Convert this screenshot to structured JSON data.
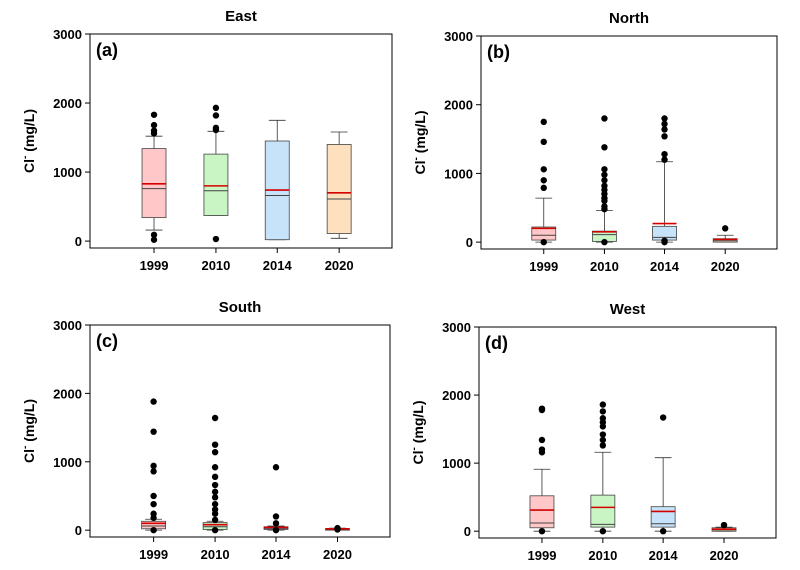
{
  "chart_data": [
    {
      "type": "box",
      "title": "East",
      "panel": "(a)",
      "ylabel": "Cl",
      "ylabel_sup": "-",
      "ylabel_unit": " (mg/L)",
      "ylim": [
        -100,
        3000
      ],
      "yticks": [
        0,
        1000,
        2000,
        3000
      ],
      "categories": [
        "1999",
        "2010",
        "2014",
        "2020"
      ],
      "colors": [
        "#ffc7c7",
        "#c9f5c4",
        "#c7e3fa",
        "#fde0bd"
      ],
      "boxes": [
        {
          "q1": 340,
          "median": 760,
          "mean": 830,
          "q3": 1340,
          "whisker_low": 160,
          "whisker_high": 1520,
          "outliers": [
            20,
            90,
            1560,
            1600,
            1680,
            1830
          ]
        },
        {
          "q1": 370,
          "median": 730,
          "mean": 800,
          "q3": 1260,
          "whisker_low": 370,
          "whisker_high": 1590,
          "outliers": [
            30,
            1610,
            1640,
            1820,
            1930
          ]
        },
        {
          "q1": 20,
          "median": 660,
          "mean": 740,
          "q3": 1450,
          "whisker_low": 20,
          "whisker_high": 1750,
          "outliers": []
        },
        {
          "q1": 110,
          "median": 610,
          "mean": 700,
          "q3": 1400,
          "whisker_low": 40,
          "whisker_high": 1580,
          "outliers": []
        }
      ]
    },
    {
      "type": "box",
      "title": "North",
      "panel": "(b)",
      "ylabel": "Cl",
      "ylabel_sup": "-",
      "ylabel_unit": " (mg/L)",
      "ylim": [
        -100,
        3000
      ],
      "yticks": [
        0,
        1000,
        2000,
        3000
      ],
      "categories": [
        "1999",
        "2010",
        "2014",
        "2020"
      ],
      "colors": [
        "#ffc7c7",
        "#c9f5c4",
        "#c7e3fa",
        "#fde0bd"
      ],
      "boxes": [
        {
          "q1": 30,
          "median": 100,
          "mean": 200,
          "q3": 220,
          "whisker_low": 0,
          "whisker_high": 640,
          "outliers": [
            0,
            790,
            900,
            1060,
            1460,
            1750
          ]
        },
        {
          "q1": 10,
          "median": 110,
          "mean": 150,
          "q3": 160,
          "whisker_low": 0,
          "whisker_high": 460,
          "outliers": [
            0,
            480,
            520,
            600,
            640,
            700,
            760,
            820,
            900,
            980,
            1060,
            1380,
            1800
          ]
        },
        {
          "q1": 30,
          "median": 70,
          "mean": 270,
          "q3": 230,
          "whisker_low": 0,
          "whisker_high": 1170,
          "outliers": [
            0,
            20,
            1200,
            1280,
            1540,
            1640,
            1720,
            1800
          ]
        },
        {
          "q1": 0,
          "median": 20,
          "mean": 40,
          "q3": 50,
          "whisker_low": 0,
          "whisker_high": 100,
          "outliers": [
            200
          ]
        }
      ]
    },
    {
      "type": "box",
      "title": "South",
      "panel": "(c)",
      "ylabel": "Cl",
      "ylabel_sup": "-",
      "ylabel_unit": " (mg/L)",
      "ylim": [
        -100,
        3000
      ],
      "yticks": [
        0,
        1000,
        2000,
        3000
      ],
      "categories": [
        "1999",
        "2010",
        "2014",
        "2020"
      ],
      "colors": [
        "#ffc7c7",
        "#c9f5c4",
        "#c7e3fa",
        "#fde0bd"
      ],
      "boxes": [
        {
          "q1": 20,
          "median": 60,
          "mean": 100,
          "q3": 130,
          "whisker_low": 0,
          "whisker_high": 160,
          "outliers": [
            0,
            180,
            240,
            380,
            500,
            860,
            940,
            1440,
            1880
          ]
        },
        {
          "q1": 10,
          "median": 50,
          "mean": 80,
          "q3": 110,
          "whisker_low": 0,
          "whisker_high": 130,
          "outliers": [
            0,
            150,
            240,
            300,
            380,
            480,
            560,
            660,
            780,
            920,
            1140,
            1250,
            1640
          ]
        },
        {
          "q1": 10,
          "median": 20,
          "mean": 40,
          "q3": 50,
          "whisker_low": 0,
          "whisker_high": 60,
          "outliers": [
            0,
            100,
            200,
            920
          ]
        },
        {
          "q1": 0,
          "median": 10,
          "mean": 20,
          "q3": 20,
          "whisker_low": 0,
          "whisker_high": 30,
          "outliers": [
            10,
            30
          ]
        }
      ]
    },
    {
      "type": "box",
      "title": "West",
      "panel": "(d)",
      "ylabel": "Cl",
      "ylabel_sup": "-",
      "ylabel_unit": " (mg/L)",
      "ylim": [
        -100,
        3000
      ],
      "yticks": [
        0,
        1000,
        2000,
        3000
      ],
      "categories": [
        "1999",
        "2010",
        "2014",
        "2020"
      ],
      "colors": [
        "#ffc7c7",
        "#c9f5c4",
        "#c7e3fa",
        "#fde0bd"
      ],
      "boxes": [
        {
          "q1": 50,
          "median": 120,
          "mean": 310,
          "q3": 520,
          "whisker_low": 0,
          "whisker_high": 910,
          "outliers": [
            0,
            1160,
            1200,
            1340,
            1780,
            1800
          ]
        },
        {
          "q1": 60,
          "median": 100,
          "mean": 350,
          "q3": 530,
          "whisker_low": 0,
          "whisker_high": 1160,
          "outliers": [
            0,
            1260,
            1340,
            1420,
            1540,
            1600,
            1660,
            1760,
            1860
          ]
        },
        {
          "q1": 60,
          "median": 110,
          "mean": 290,
          "q3": 360,
          "whisker_low": 0,
          "whisker_high": 1080,
          "outliers": [
            0,
            1670
          ]
        },
        {
          "q1": 0,
          "median": 20,
          "mean": 30,
          "q3": 50,
          "whisker_low": 0,
          "whisker_high": 60,
          "outliers": [
            90
          ]
        }
      ]
    }
  ]
}
